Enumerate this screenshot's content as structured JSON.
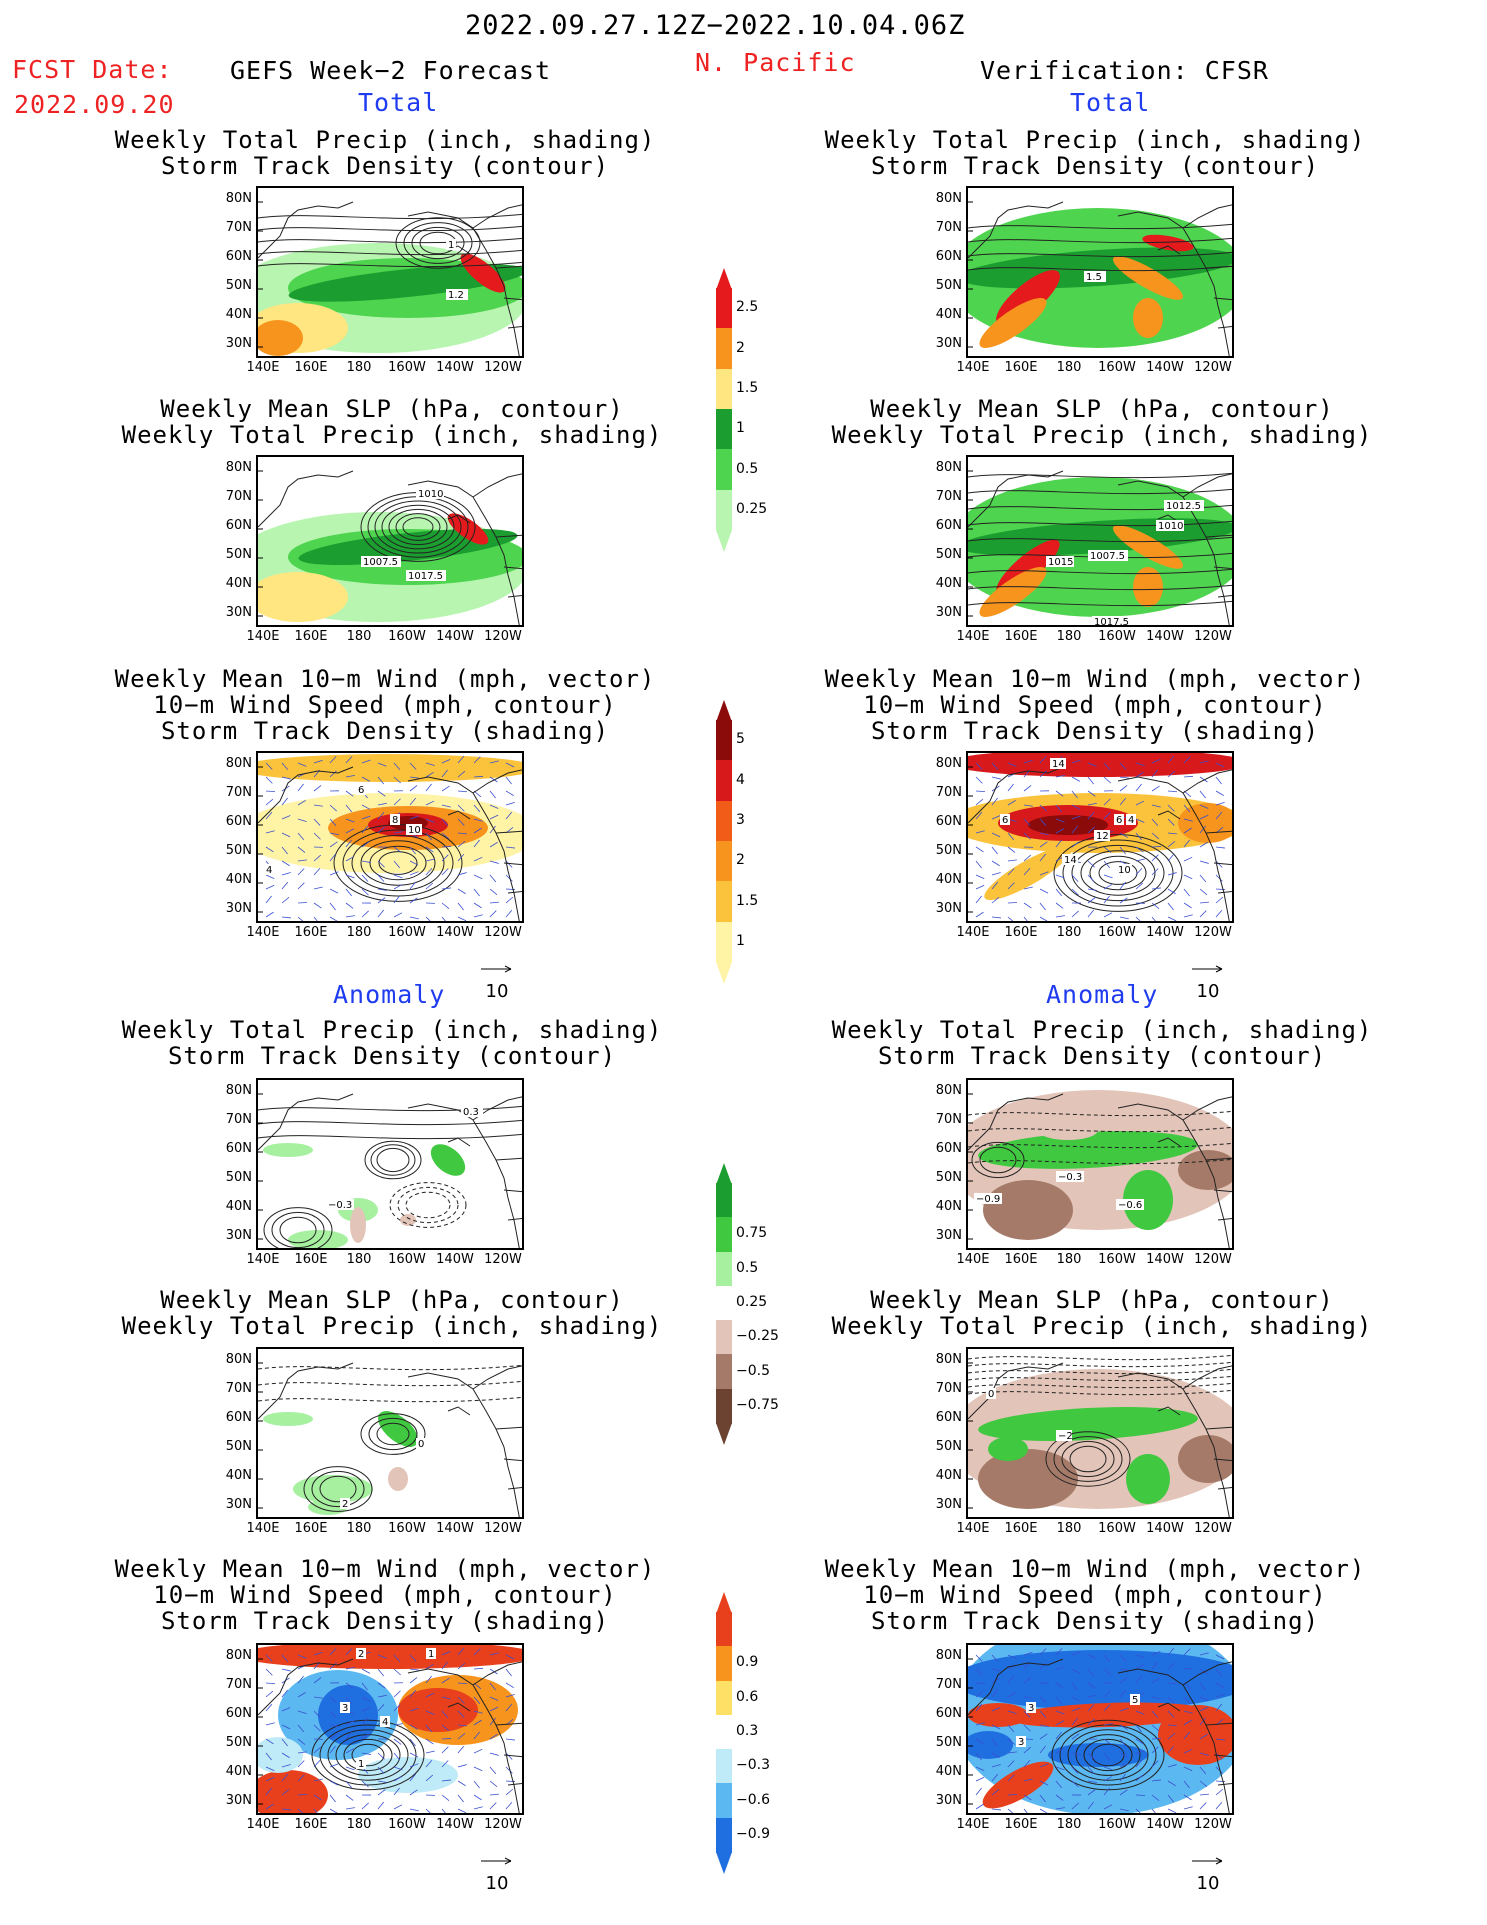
{
  "header": {
    "date_range": "2022.09.27.12Z−2022.10.04.06Z",
    "fcst_label": "FCST Date:",
    "fcst_date": "2022.09.20",
    "model_title": "GEFS Week−2 Forecast",
    "region": "N. Pacific",
    "verification": "Verification: CFSR",
    "total_left": "Total",
    "total_right": "Total",
    "anomaly_left": "Anomaly",
    "anomaly_right": "Anomaly"
  },
  "panel_titles": {
    "precip_track": "Weekly Total Precip (inch, shading)\nStorm Track Density (contour)",
    "slp_precip": "Weekly Mean SLP (hPa, contour)\nWeekly Total Precip (inch, shading)",
    "wind_track": "Weekly Mean 10−m Wind (mph, vector)\n10−m Wind Speed (mph, contour)\nStorm Track Density (shading)"
  },
  "axes": {
    "lat_labels": [
      "80N",
      "70N",
      "60N",
      "50N",
      "40N",
      "30N"
    ],
    "lon_labels": [
      "140E",
      "160E",
      "180",
      "160W",
      "140W",
      "120W"
    ],
    "vector_ref": "10"
  },
  "colorbars": {
    "precip_total": {
      "labels": [
        "2.5",
        "2",
        "1.5",
        "1",
        "0.5",
        "0.25"
      ],
      "colors": [
        "#e41a1c",
        "#f7941d",
        "#ffe680",
        "#1b9e2f",
        "#4fd44f",
        "#b8f5b0"
      ]
    },
    "track_total": {
      "labels": [
        "5",
        "4",
        "3",
        "2",
        "1.5",
        "1"
      ],
      "colors": [
        "#8b0a0a",
        "#d7191c",
        "#f25c19",
        "#f7941d",
        "#fbc33b",
        "#fff3a6"
      ]
    },
    "precip_anom": {
      "labels": [
        "0.75",
        "0.5",
        "0.25",
        "−0.25",
        "−0.5",
        "−0.75"
      ],
      "colors": [
        "#1b9e2f",
        "#40c840",
        "#a6f0a0",
        "#ffffff",
        "#e3c4b8",
        "#a57a68",
        "#6b4330"
      ]
    },
    "track_anom": {
      "labels": [
        "0.9",
        "0.6",
        "0.3",
        "−0.3",
        "−0.6",
        "−0.9"
      ],
      "colors": [
        "#e8401c",
        "#f7941d",
        "#ffe066",
        "#ffffff",
        "#bfeaf7",
        "#5cb8f0",
        "#1f6fe0"
      ]
    }
  },
  "contour_labels": {
    "fc_precip_total": [
      "1",
      "1.2"
    ],
    "ob_precip_total": [
      "1.5"
    ],
    "fc_slp_total": [
      "1010",
      "1007.5",
      "1017.5"
    ],
    "ob_slp_total": [
      "1012.5",
      "1010",
      "1015",
      "1007.5",
      "1017.5"
    ],
    "fc_wind_total": [
      "6",
      "8",
      "10",
      "4"
    ],
    "ob_wind_total": [
      "14",
      "12",
      "6",
      "4",
      "14",
      "10",
      "6"
    ],
    "fc_precip_anom": [
      "0.3",
      "−0.3"
    ],
    "ob_precip_anom": [
      "−0.3",
      "−0.9",
      "−0.6"
    ],
    "fc_slp_anom": [
      "0",
      "2"
    ],
    "ob_slp_anom": [
      "0",
      "−2"
    ],
    "fc_wind_anom": [
      "2",
      "1",
      "3",
      "4",
      "1"
    ],
    "ob_wind_anom": [
      "3",
      "5",
      "3"
    ]
  }
}
